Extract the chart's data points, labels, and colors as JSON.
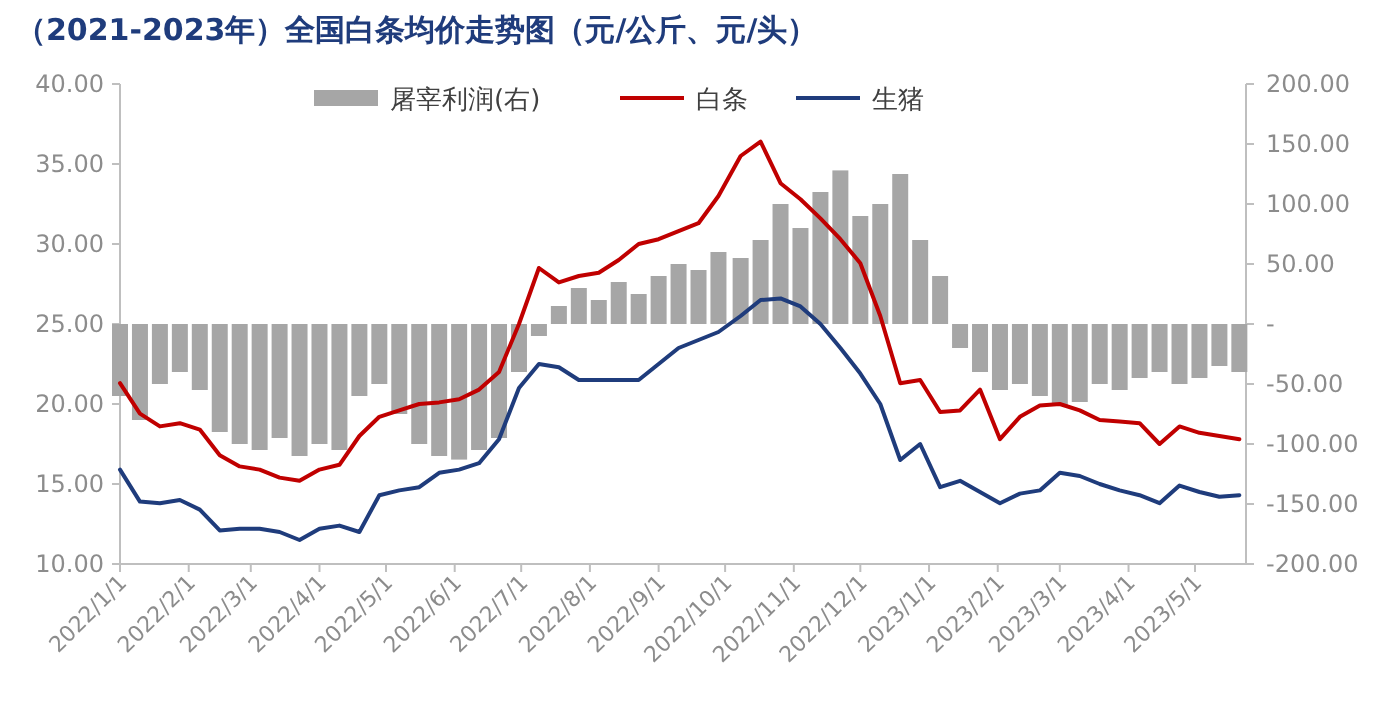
{
  "chart_data": {
    "type": "line",
    "title": "（2021-2023年）全国白条均价走势图（元/公斤、元/头）",
    "x": [
      "2022-01-01",
      "2022-01-10",
      "2022-01-19",
      "2022-01-28",
      "2022-02-06",
      "2022-02-15",
      "2022-02-24",
      "2022-03-05",
      "2022-03-14",
      "2022-03-23",
      "2022-04-01",
      "2022-04-10",
      "2022-04-19",
      "2022-04-28",
      "2022-05-07",
      "2022-05-16",
      "2022-05-25",
      "2022-06-03",
      "2022-06-12",
      "2022-06-21",
      "2022-06-30",
      "2022-07-09",
      "2022-07-18",
      "2022-07-27",
      "2022-08-05",
      "2022-08-14",
      "2022-08-23",
      "2022-09-01",
      "2022-09-10",
      "2022-09-19",
      "2022-09-28",
      "2022-10-08",
      "2022-10-17",
      "2022-10-26",
      "2022-11-04",
      "2022-11-13",
      "2022-11-22",
      "2022-12-01",
      "2022-12-10",
      "2022-12-19",
      "2022-12-28",
      "2023-01-06",
      "2023-01-15",
      "2023-01-24",
      "2023-02-02",
      "2023-02-11",
      "2023-02-20",
      "2023-03-01",
      "2023-03-10",
      "2023-03-19",
      "2023-03-28",
      "2023-04-06",
      "2023-04-15",
      "2023-04-24",
      "2023-05-03",
      "2023-05-12",
      "2023-05-21"
    ],
    "series": [
      {
        "name": "屠宰利润(右)",
        "type": "bar",
        "axis": "y2",
        "color": "#a6a6a6",
        "values": [
          -60,
          -80,
          -50,
          -40,
          -55,
          -90,
          -100,
          -105,
          -95,
          -110,
          -100,
          -105,
          -60,
          -50,
          -75,
          -100,
          -110,
          -113,
          -105,
          -95,
          -40,
          -10,
          15,
          30,
          20,
          35,
          25,
          40,
          50,
          45,
          60,
          55,
          70,
          100,
          80,
          110,
          128,
          90,
          100,
          125,
          70,
          40,
          -20,
          -40,
          -55,
          -50,
          -60,
          -68,
          -65,
          -50,
          -55,
          -45,
          -40,
          -50,
          -45,
          -35,
          -40
        ]
      },
      {
        "name": "白条",
        "color": "#c00000",
        "values": [
          21.3,
          19.4,
          18.6,
          18.8,
          18.4,
          16.8,
          16.1,
          15.9,
          15.4,
          15.2,
          15.9,
          16.2,
          18.0,
          19.2,
          19.6,
          20.0,
          20.1,
          20.3,
          20.9,
          22.0,
          25.0,
          28.5,
          27.6,
          28.0,
          28.2,
          29.0,
          30.0,
          30.3,
          30.8,
          31.3,
          33.0,
          35.5,
          36.4,
          33.8,
          32.8,
          31.6,
          30.3,
          28.8,
          25.5,
          21.3,
          21.5,
          19.5,
          19.6,
          20.9,
          17.8,
          19.2,
          19.9,
          20.0,
          19.6,
          19.0,
          18.9,
          18.8,
          17.5,
          18.6,
          18.2,
          18.0,
          17.8
        ]
      },
      {
        "name": "生猪",
        "color": "#1f3c7c",
        "values": [
          15.9,
          13.9,
          13.8,
          14.0,
          13.4,
          12.1,
          12.2,
          12.2,
          12.0,
          11.5,
          12.2,
          12.4,
          12.0,
          14.3,
          14.6,
          14.8,
          15.7,
          15.9,
          16.3,
          17.8,
          21.0,
          22.5,
          22.3,
          21.5,
          21.5,
          21.5,
          21.5,
          22.5,
          23.5,
          24.0,
          24.5,
          25.5,
          26.5,
          26.6,
          26.1,
          25.0,
          23.5,
          21.9,
          20.0,
          16.5,
          17.5,
          14.8,
          15.2,
          14.5,
          13.8,
          14.4,
          14.6,
          15.7,
          15.5,
          15.0,
          14.6,
          14.3,
          13.8,
          14.9,
          14.5,
          14.2,
          14.3
        ]
      }
    ],
    "xlim": [
      "2022-01-01",
      "2023-05-24"
    ],
    "xticks": [
      {
        "value": "2022-01-01",
        "label": "2022/1/1"
      },
      {
        "value": "2022-02-01",
        "label": "2022/2/1"
      },
      {
        "value": "2022-03-01",
        "label": "2022/3/1"
      },
      {
        "value": "2022-04-01",
        "label": "2022/4/1"
      },
      {
        "value": "2022-05-01",
        "label": "2022/5/1"
      },
      {
        "value": "2022-06-01",
        "label": "2022/6/1"
      },
      {
        "value": "2022-07-01",
        "label": "2022/7/1"
      },
      {
        "value": "2022-08-01",
        "label": "2022/8/1"
      },
      {
        "value": "2022-09-01",
        "label": "2022/9/1"
      },
      {
        "value": "2022-10-01",
        "label": "2022/10/1"
      },
      {
        "value": "2022-11-01",
        "label": "2022/11/1"
      },
      {
        "value": "2022-12-01",
        "label": "2022/12/1"
      },
      {
        "value": "2023-01-01",
        "label": "2023/1/1"
      },
      {
        "value": "2023-02-01",
        "label": "2023/2/1"
      },
      {
        "value": "2023-03-01",
        "label": "2023/3/1"
      },
      {
        "value": "2023-04-01",
        "label": "2023/4/1"
      },
      {
        "value": "2023-05-01",
        "label": "2023/5/1"
      }
    ],
    "ylim": [
      10,
      40
    ],
    "yticks": [
      {
        "value": 10,
        "label": "10.00"
      },
      {
        "value": 15,
        "label": "15.00"
      },
      {
        "value": 20,
        "label": "20.00"
      },
      {
        "value": 25,
        "label": "25.00"
      },
      {
        "value": 30,
        "label": "30.00"
      },
      {
        "value": 35,
        "label": "35.00"
      },
      {
        "value": 40,
        "label": "40.00"
      }
    ],
    "y2lim": [
      -200,
      200
    ],
    "y2ticks": [
      {
        "value": -200,
        "label": "-200.00"
      },
      {
        "value": -150,
        "label": "-150.00"
      },
      {
        "value": -100,
        "label": "-100.00"
      },
      {
        "value": -50,
        "label": "-50.00"
      },
      {
        "value": 0,
        "label": "-"
      },
      {
        "value": 50,
        "label": "50.00"
      },
      {
        "value": 100,
        "label": "100.00"
      },
      {
        "value": 150,
        "label": "150.00"
      },
      {
        "value": 200,
        "label": "200.00"
      }
    ],
    "legend": "top"
  }
}
